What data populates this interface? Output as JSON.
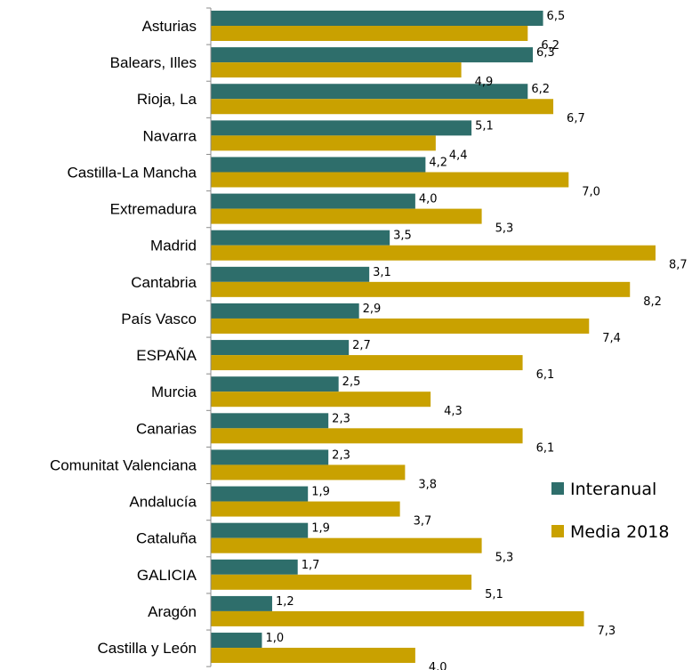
{
  "chart_data": {
    "type": "bar",
    "orientation": "horizontal",
    "categories": [
      "Asturias",
      "Balears, Illes",
      "Rioja, La",
      "Navarra",
      "Castilla-La Mancha",
      "Extremadura",
      "Madrid",
      "Cantabria",
      "País Vasco",
      "ESPAÑA",
      "Murcia",
      "Canarias",
      "Comunitat Valenciana",
      "Andalucía",
      "Cataluña",
      "GALICIA",
      "Aragón",
      "Castilla y León"
    ],
    "series": [
      {
        "name": "Interanual",
        "color": "#2e6e6b",
        "values": [
          6.5,
          6.3,
          6.2,
          5.1,
          4.2,
          4.0,
          3.5,
          3.1,
          2.9,
          2.7,
          2.5,
          2.3,
          2.3,
          1.9,
          1.9,
          1.7,
          1.2,
          1.0
        ],
        "labels": [
          "6,5",
          "6,3",
          "6,2",
          "5,1",
          "4,2",
          "4,0",
          "3,5",
          "3,1",
          "2,9",
          "2,7",
          "2,5",
          "2,3",
          "2,3",
          "1,9",
          "1,9",
          "1,7",
          "1,2",
          "1,0"
        ]
      },
      {
        "name": "Media 2018",
        "color": "#c9a100",
        "values": [
          6.2,
          4.9,
          6.7,
          4.4,
          7.0,
          5.3,
          8.7,
          8.2,
          7.4,
          6.1,
          4.3,
          6.1,
          3.8,
          3.7,
          5.3,
          5.1,
          7.3,
          4.0
        ],
        "labels": [
          "6,2",
          "4,9",
          "6,7",
          "4,4",
          "7,0",
          "5,3",
          "8,7",
          "8,2",
          "7,4",
          "6,1",
          "4,3",
          "6,1",
          "3,8",
          "3,7",
          "5,3",
          "5,1",
          "7,3",
          "4,0"
        ]
      }
    ],
    "xlim": [
      0,
      9
    ],
    "grid": false,
    "legend_position": "right"
  }
}
